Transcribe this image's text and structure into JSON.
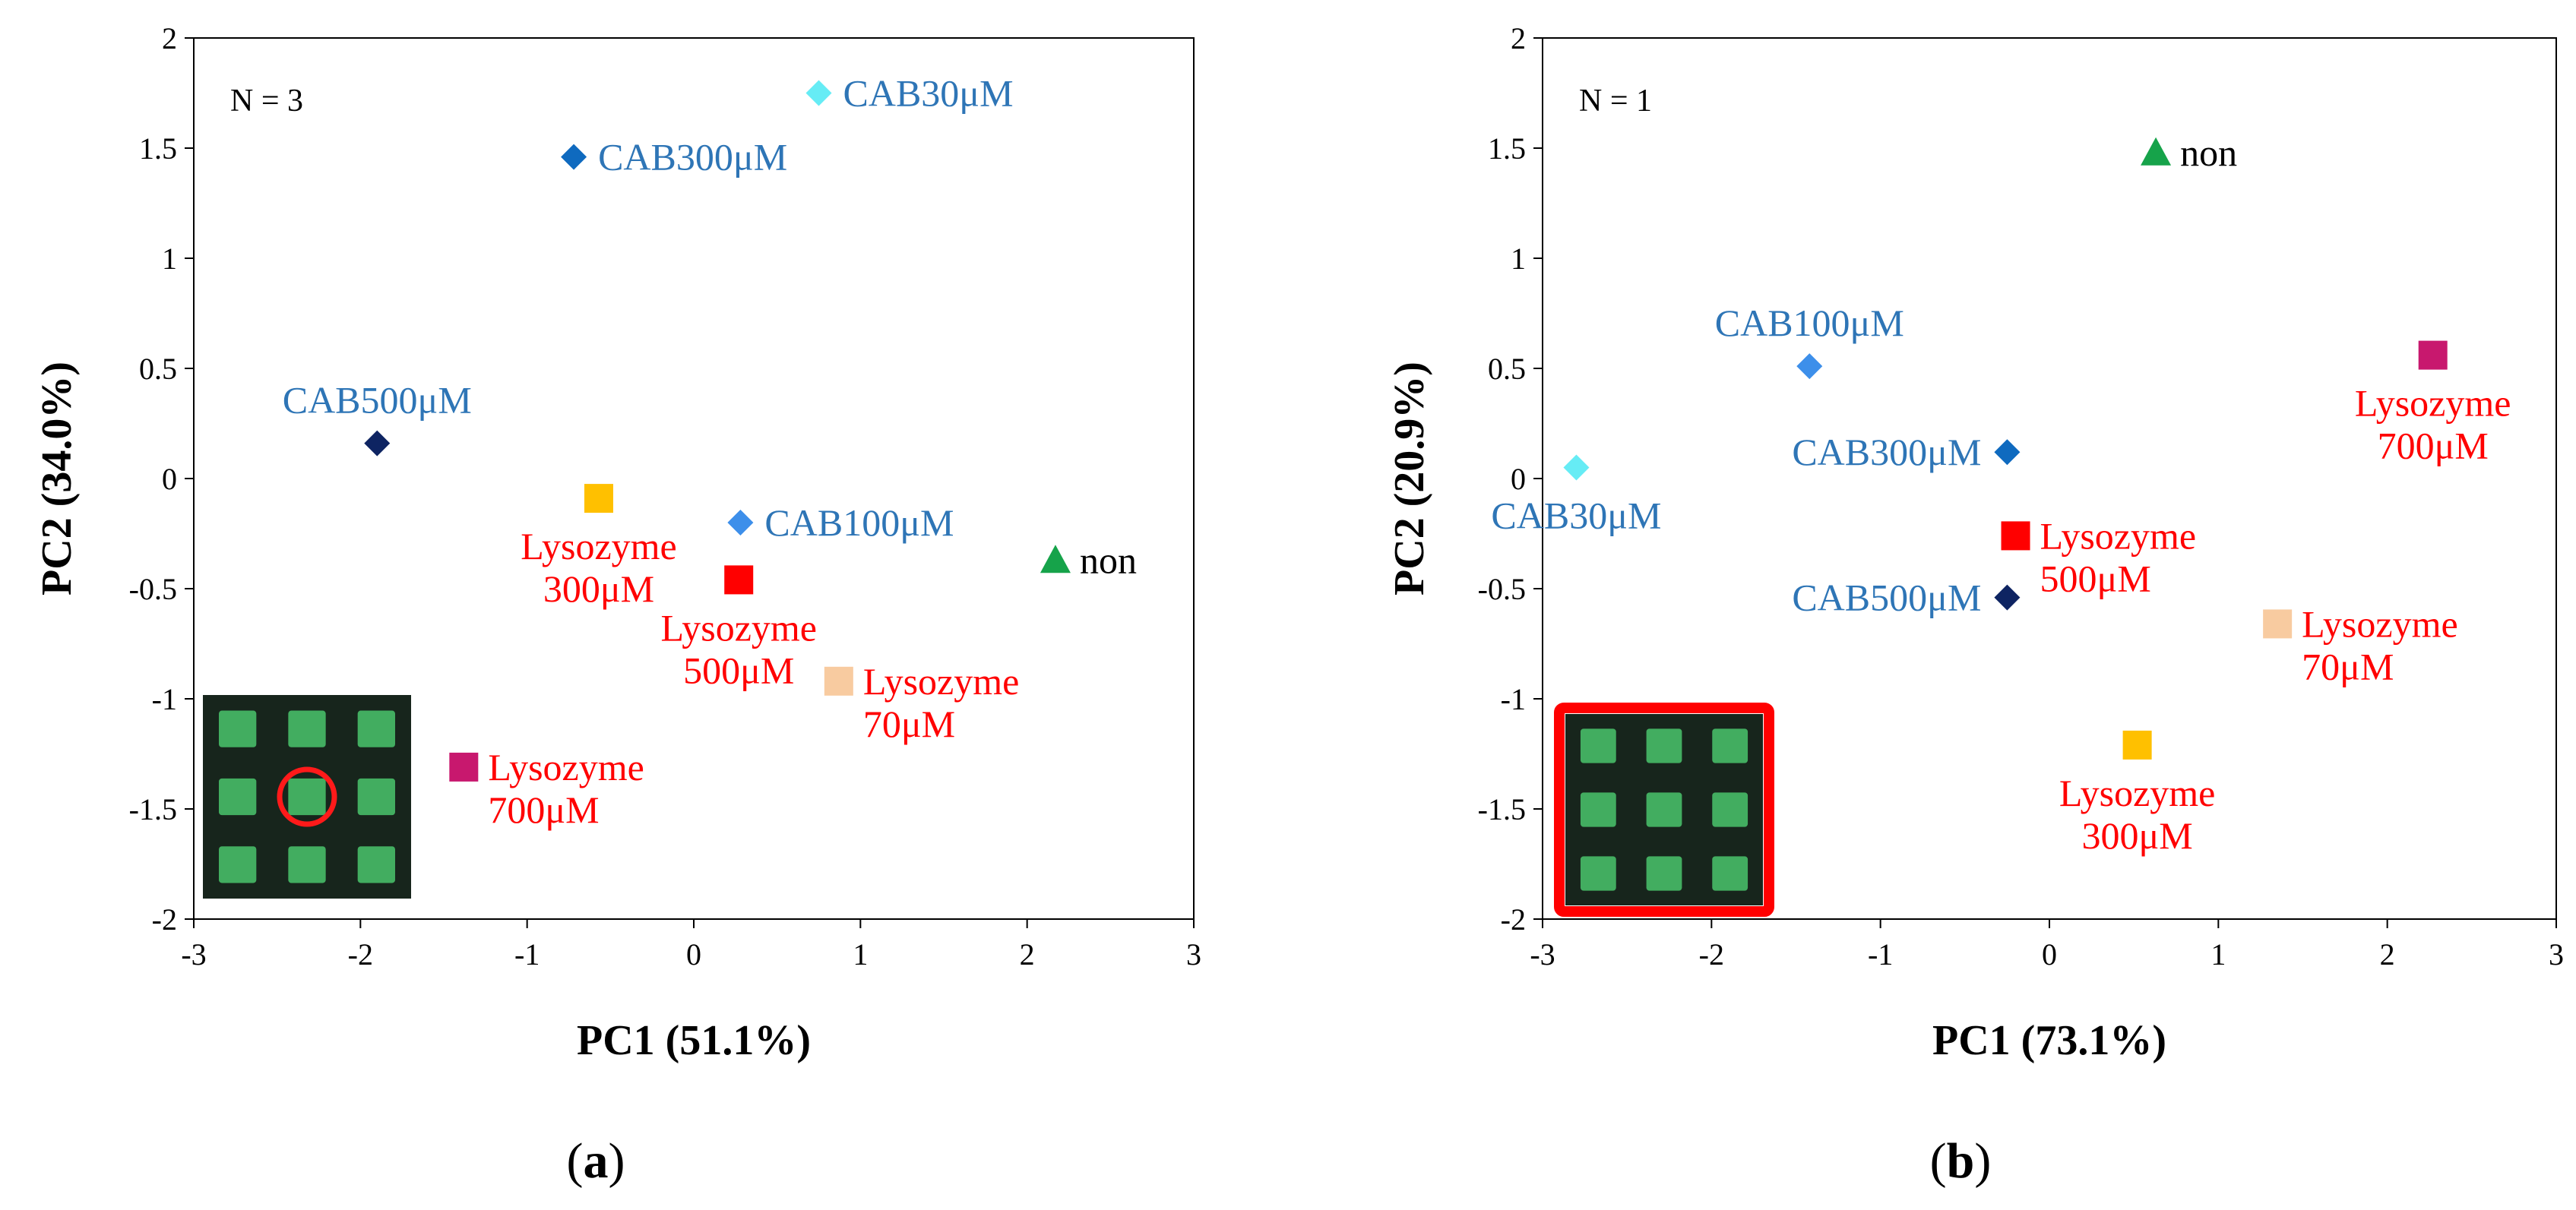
{
  "chart_data": [
    {
      "type": "scatter",
      "panel_label": "a",
      "annotation": "N = 3",
      "xlabel": "PC1 (51.1%)",
      "ylabel": "PC2 (34.0%)",
      "xlim": [
        -3,
        3
      ],
      "ylim": [
        -2,
        2
      ],
      "xticks": [
        "-3",
        "-2",
        "-1",
        "0",
        "1",
        "2",
        "3"
      ],
      "yticks": [
        "-2",
        "-1.5",
        "-1",
        "-0.5",
        "0",
        "0.5",
        "1",
        "1.5",
        "2"
      ],
      "grid": false,
      "inset": {
        "type": "microscope-image",
        "highlight": "red-circle"
      },
      "points": [
        {
          "lines": [
            "CAB30μM"
          ],
          "x": 0.75,
          "y": 1.75,
          "marker": "diamond",
          "color": "#66ECF5",
          "label_color": "#2E75B6",
          "label_pos": "right"
        },
        {
          "lines": [
            "CAB300μM"
          ],
          "x": -0.72,
          "y": 1.46,
          "marker": "diamond",
          "color": "#0F6ABF",
          "label_color": "#2E75B6",
          "label_pos": "right"
        },
        {
          "lines": [
            "CAB500μM"
          ],
          "x": -1.9,
          "y": 0.16,
          "marker": "diamond",
          "color": "#0E2462",
          "label_color": "#2E75B6",
          "label_pos": "above"
        },
        {
          "lines": [
            "CAB100μM"
          ],
          "x": 0.28,
          "y": -0.2,
          "marker": "diamond",
          "color": "#3D8FEA",
          "label_color": "#2E75B6",
          "label_pos": "right"
        },
        {
          "lines": [
            "non"
          ],
          "x": 2.17,
          "y": -0.37,
          "marker": "triangle",
          "color": "#16A34A",
          "label_color": "#000000",
          "label_pos": "right"
        },
        {
          "lines": [
            "Lysozyme",
            "300μM"
          ],
          "x": -0.57,
          "y": -0.09,
          "marker": "square",
          "color": "#FFC000",
          "label_color": "#FF0000",
          "label_pos": "below"
        },
        {
          "lines": [
            "Lysozyme",
            "500μM"
          ],
          "x": 0.27,
          "y": -0.46,
          "marker": "square",
          "color": "#FF0000",
          "label_color": "#FF0000",
          "label_pos": "below"
        },
        {
          "lines": [
            "Lysozyme",
            "70μM"
          ],
          "x": 0.87,
          "y": -0.92,
          "marker": "square",
          "color": "#F8CBA0",
          "label_color": "#FF0000",
          "label_pos": "right"
        },
        {
          "lines": [
            "Lysozyme",
            "700μM"
          ],
          "x": -1.38,
          "y": -1.31,
          "marker": "square",
          "color": "#C8186E",
          "label_color": "#FF0000",
          "label_pos": "right"
        }
      ]
    },
    {
      "type": "scatter",
      "panel_label": "b",
      "annotation": "N = 1",
      "xlabel": "PC1 (73.1%)",
      "ylabel": "PC2 (20.9%)",
      "xlim": [
        -3,
        3
      ],
      "ylim": [
        -2,
        2
      ],
      "xticks": [
        "-3",
        "-2",
        "-1",
        "0",
        "1",
        "2",
        "3"
      ],
      "yticks": [
        "-2",
        "-1.5",
        "-1",
        "-0.5",
        "0",
        "0.5",
        "1",
        "1.5",
        "2"
      ],
      "grid": false,
      "inset": {
        "type": "microscope-image",
        "highlight": "red-frame"
      },
      "points": [
        {
          "lines": [
            "non"
          ],
          "x": 0.63,
          "y": 1.48,
          "marker": "triangle",
          "color": "#16A34A",
          "label_color": "#000000",
          "label_pos": "right"
        },
        {
          "lines": [
            "CAB100μM"
          ],
          "x": -1.42,
          "y": 0.51,
          "marker": "diamond",
          "color": "#3D8FEA",
          "label_color": "#2E75B6",
          "label_pos": "above"
        },
        {
          "lines": [
            "CAB300μM"
          ],
          "x": -0.25,
          "y": 0.12,
          "marker": "diamond",
          "color": "#0F6ABF",
          "label_color": "#2E75B6",
          "label_pos": "left"
        },
        {
          "lines": [
            "CAB30μM"
          ],
          "x": -2.8,
          "y": 0.05,
          "marker": "diamond",
          "color": "#66ECF5",
          "label_color": "#2E75B6",
          "label_pos": "below"
        },
        {
          "lines": [
            "CAB500μM"
          ],
          "x": -0.25,
          "y": -0.54,
          "marker": "diamond",
          "color": "#0E2462",
          "label_color": "#2E75B6",
          "label_pos": "left"
        },
        {
          "lines": [
            "Lysozyme",
            "700μM"
          ],
          "x": 2.27,
          "y": 0.56,
          "marker": "square",
          "color": "#C8186E",
          "label_color": "#FF0000",
          "label_pos": "below"
        },
        {
          "lines": [
            "Lysozyme",
            "500μM"
          ],
          "x": -0.2,
          "y": -0.26,
          "marker": "square",
          "color": "#FF0000",
          "label_color": "#FF0000",
          "label_pos": "right"
        },
        {
          "lines": [
            "Lysozyme",
            "70μM"
          ],
          "x": 1.35,
          "y": -0.66,
          "marker": "square",
          "color": "#F8CBA0",
          "label_color": "#FF0000",
          "label_pos": "right"
        },
        {
          "lines": [
            "Lysozyme",
            "300μM"
          ],
          "x": 0.52,
          "y": -1.21,
          "marker": "square",
          "color": "#FFC000",
          "label_color": "#FF0000",
          "label_pos": "below"
        }
      ]
    }
  ]
}
